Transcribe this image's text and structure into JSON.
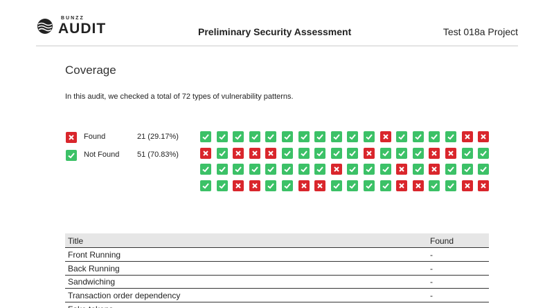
{
  "header": {
    "brand_small": "BUNZZ",
    "brand": "AUDIT",
    "title": "Preliminary Security Assessment",
    "project": "Test 018a Project"
  },
  "coverage": {
    "heading": "Coverage",
    "description": "In this audit, we checked a total of 72 types of vulnerability patterns.",
    "legend": [
      {
        "label": "Found",
        "count": "21 (29.17%)"
      },
      {
        "label": "Not Found",
        "count": "51 (70.83%)"
      }
    ],
    "grid": [
      [
        false,
        false,
        false,
        false,
        false,
        false,
        false,
        false,
        false,
        false,
        false,
        true,
        false,
        false,
        false,
        false,
        true,
        true
      ],
      [
        true,
        false,
        true,
        true,
        true,
        false,
        false,
        false,
        false,
        false,
        true,
        false,
        false,
        false,
        true,
        true,
        false,
        false
      ],
      [
        false,
        false,
        false,
        false,
        false,
        false,
        false,
        false,
        true,
        false,
        false,
        false,
        true,
        false,
        true,
        false,
        false,
        false
      ],
      [
        false,
        false,
        true,
        true,
        false,
        false,
        true,
        true,
        false,
        false,
        false,
        false,
        true,
        true,
        false,
        false,
        true,
        true
      ]
    ]
  },
  "table": {
    "columns": [
      "Title",
      "Found"
    ],
    "rows": [
      [
        "Front Running",
        "-"
      ],
      [
        "Back Running",
        "-"
      ],
      [
        "Sandwiching",
        "-"
      ],
      [
        "Transaction order dependency",
        "-"
      ],
      [
        "Fake tokens",
        ""
      ]
    ]
  }
}
